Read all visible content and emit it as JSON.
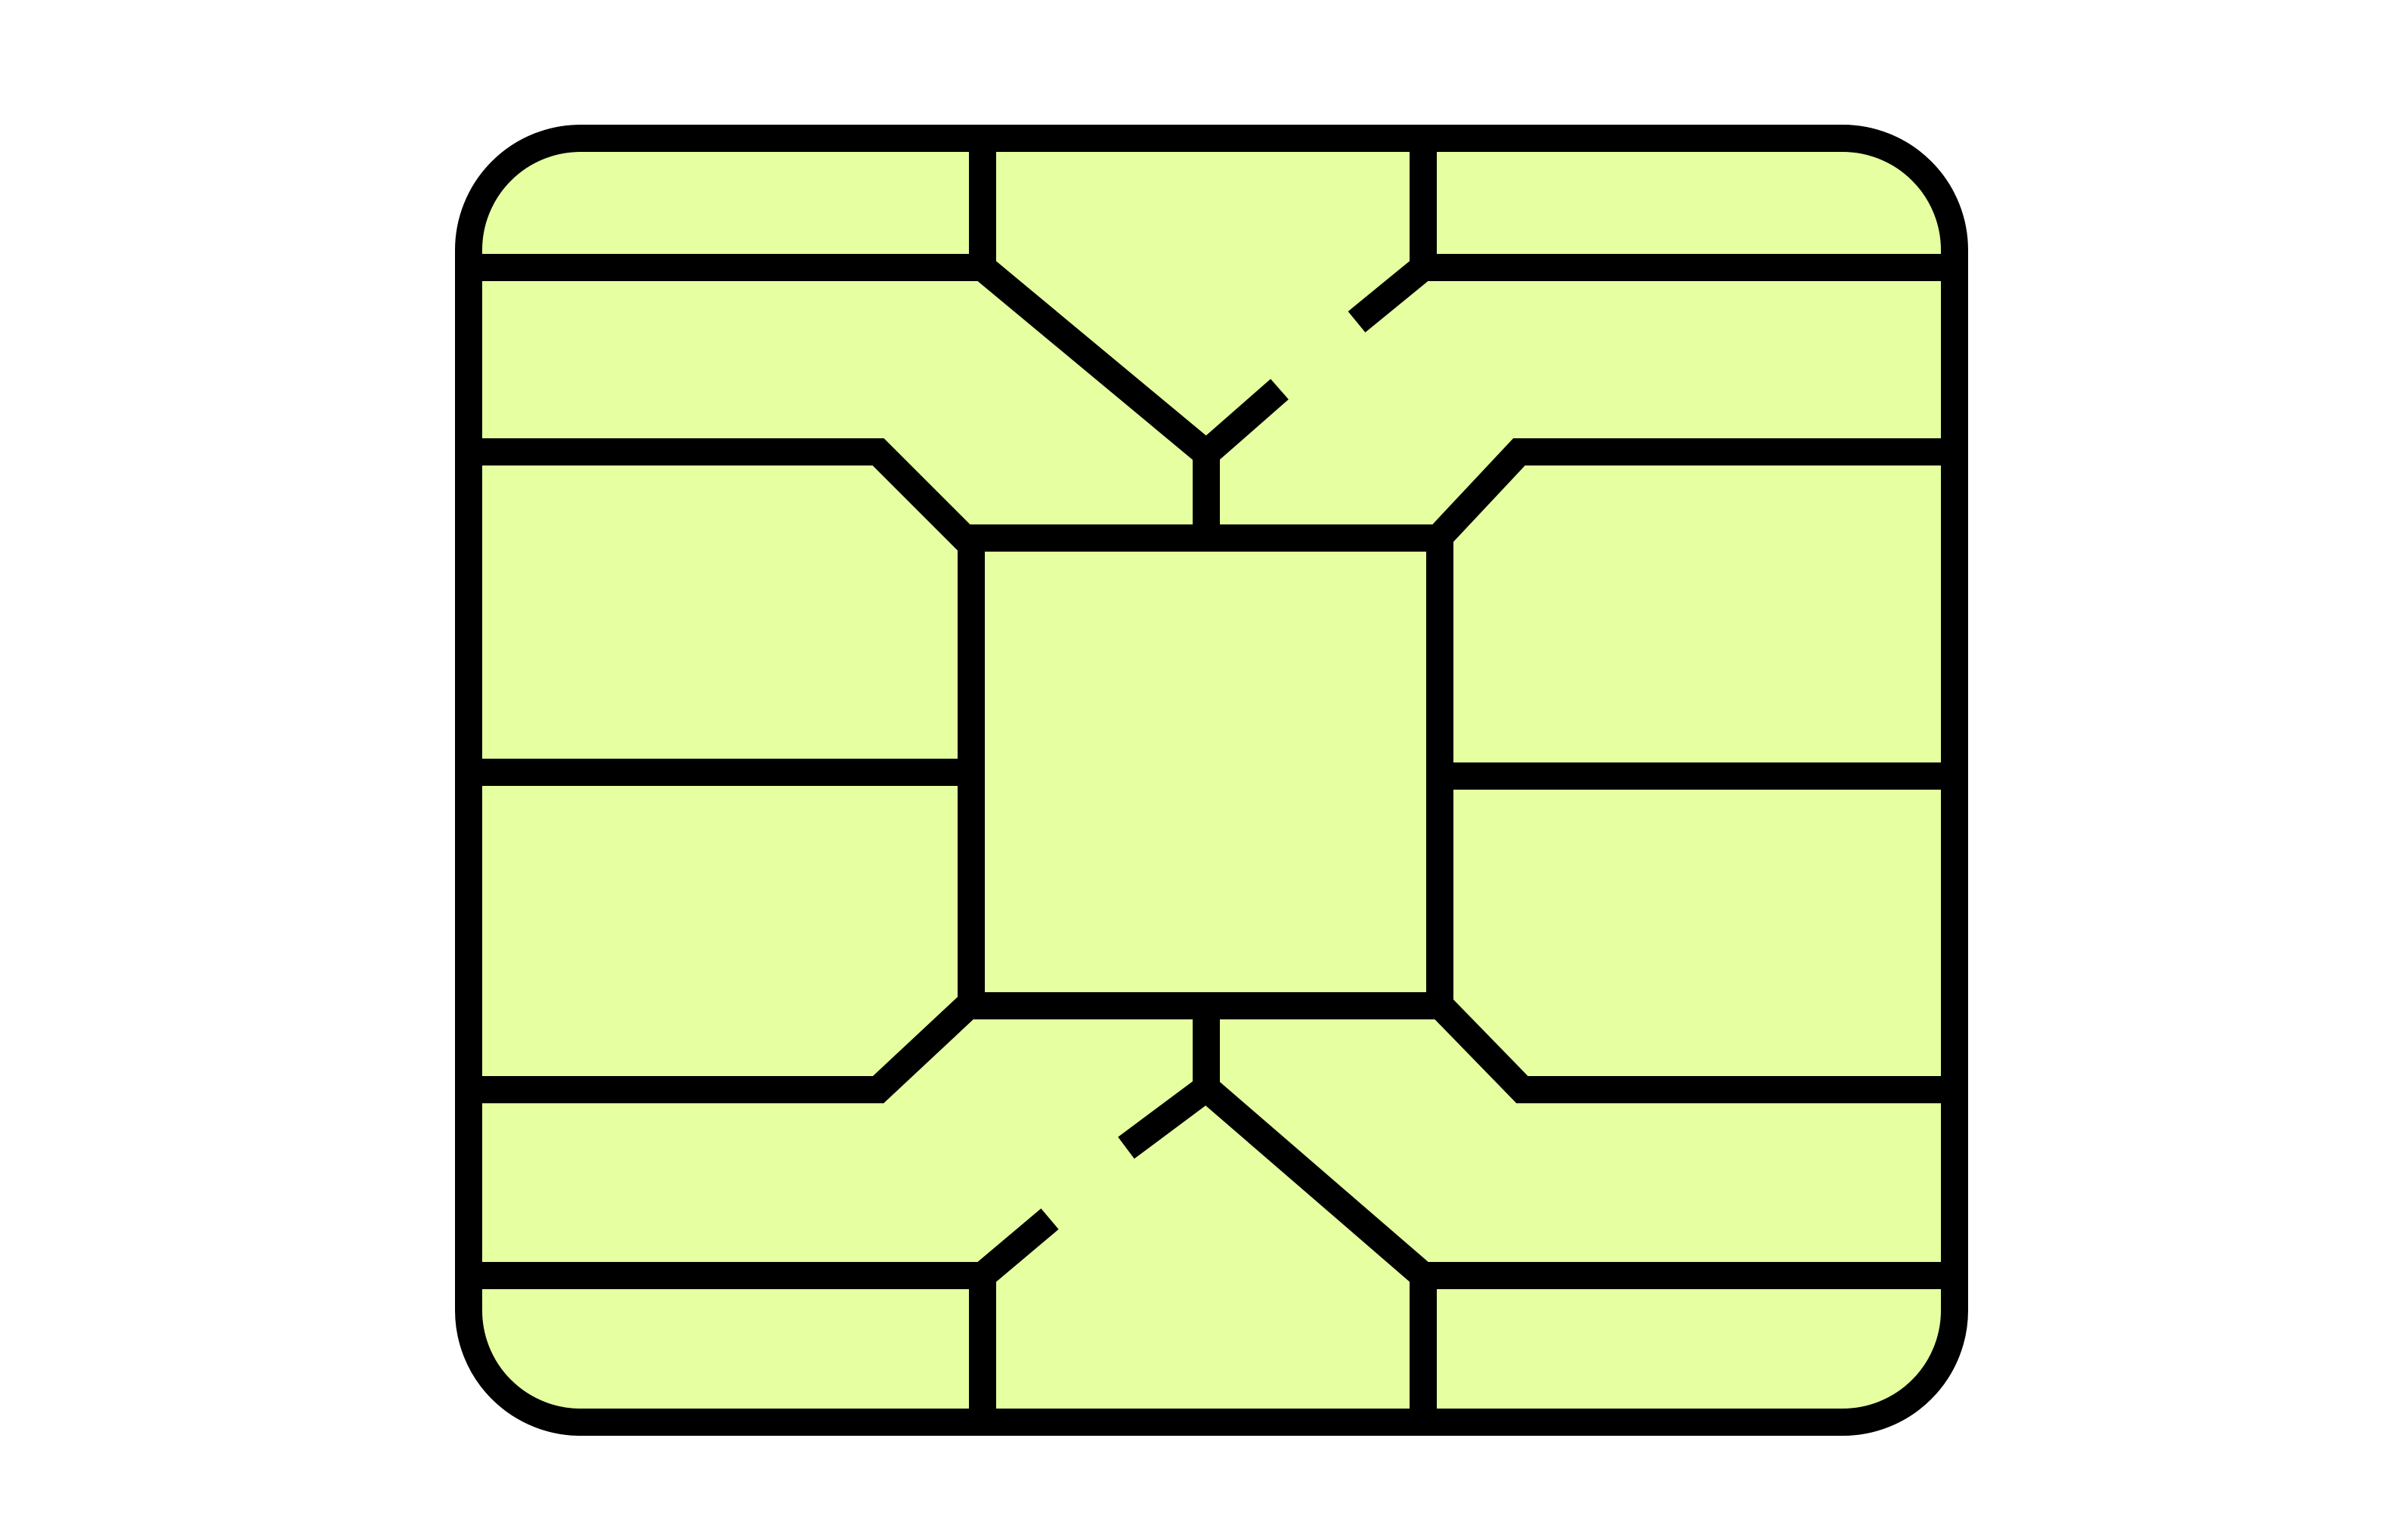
{
  "illustration": {
    "subject": "smart-card-chip-icon",
    "colors": {
      "fill": "#e6ffa0",
      "stroke": "#000000",
      "background": "#ffffff"
    }
  }
}
